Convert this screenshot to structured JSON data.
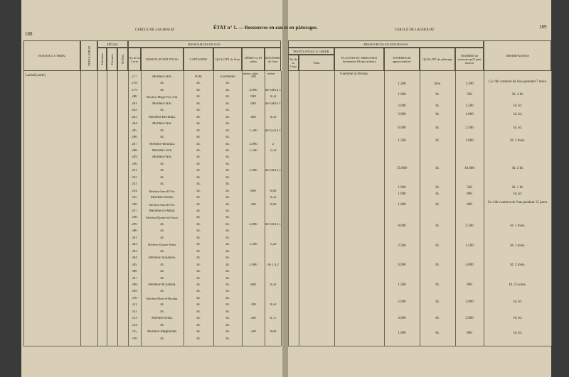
{
  "left_page": {
    "page_number": "188",
    "header": "CERCLE DE LAGHOUAT",
    "title": "ÉTAT n° 1. — Ressources en eau et en pâturages."
  },
  "right_page": {
    "header": "CERCLE DE LAGHOUAT",
    "page_number": "189"
  },
  "headers": [
    "NOM DE LA TRIBU",
    "POPULATION",
    "DÉTAIL",
    "Hommes",
    "Femmes",
    "TOTAL",
    "RESSOURCES EN EAU",
    "No de la Carte",
    "NOM DU POINT D'EAU",
    "CATÉGORIE",
    "QUALITÉ de l'eau",
    "DÉBIT en M cubes",
    "PROFONDEUR de l'eau",
    "RESSOURCES EN PATURAGES",
    "POINTS D'EAU À CRÉER",
    "No de la Carte",
    "Nom",
    "PLANTES ET ARBUSTES dominants (Noms arabes)",
    "SUPERFICIE approximative",
    "QUALITÉ du pâturage",
    "NOMBRE de moutons qu'il peut nourrir",
    "OBSERVATIONS"
  ],
  "units": {
    "debit": "mètres cubes",
    "depth": "mètres"
  },
  "tribe": "Larbaâ (suite)",
  "plants": "Guemme iz-Drouss.",
  "rows": [
    [
      "277",
      "Merdeur-Nili.",
      "R'dir",
      "Excellente",
      "700",
      null
    ],
    [
      "278",
      "Id.",
      "Id.",
      "Id.",
      null,
      null
    ],
    [
      "279",
      "Id.",
      "Id.",
      "Id.",
      "4.000",
      "de 0,80 à 1"
    ],
    [
      "280",
      "Merdeur-Mlaga-Fera-Nili.",
      "Id.",
      "Id.",
      "600",
      "0,50"
    ],
    [
      "281",
      "Merdeur-Nili.",
      "Id.",
      "Id.",
      "600",
      "de 0,80 à 1"
    ],
    [
      "282",
      "Id.",
      "Id.",
      "Id.",
      null,
      null
    ],
    [
      "283",
      "Merdeur-Bechraia.",
      "Id.",
      "Id.",
      "400",
      "0,50"
    ],
    [
      "284",
      "Merdeur-Nili.",
      "Id.",
      "Id.",
      null,
      null
    ],
    [
      "285",
      "Id.",
      "Id.",
      "Id.",
      "1.500",
      "de 0,50 à 1"
    ],
    [
      "286",
      "Id.",
      "Id.",
      "Id.",
      null,
      null
    ],
    [
      "287",
      "Merdeur-Boufaia.",
      "Id.",
      "Id.",
      "3.000",
      "2"
    ],
    [
      "288",
      "Merdeur-Trik.",
      "Id.",
      "Id.",
      "1.500",
      "1,50"
    ],
    [
      "289",
      "Merdeur-Nili.",
      "Id.",
      "Id.",
      null,
      null
    ],
    [
      "290",
      "Id.",
      "Id.",
      "Id.",
      null,
      null
    ],
    [
      "291",
      "Id.",
      "Id.",
      "Id.",
      "2.000",
      "de 0,80 à 1,20"
    ],
    [
      "292",
      "Id.",
      "Id.",
      "Id.",
      null,
      null
    ],
    [
      "293",
      "Id.",
      "Id.",
      "Id.",
      null,
      null
    ],
    [
      "294",
      "Merdeur-Saou-El-Ter.",
      "Id.",
      "Id.",
      "800",
      "0,80"
    ],
    [
      "295",
      "Merdeur-Nekra.",
      "Id.",
      "Id.",
      null,
      "0,50"
    ],
    [
      "296",
      "Merdeur-Saou-El-Ter.",
      "Id.",
      "Id.",
      "200",
      "0,60"
    ],
    [
      "297",
      "Merdeur-El-Mitat.",
      "Id.",
      "Id.",
      null,
      null
    ],
    [
      "298",
      "Merdeur-Djeam-bel-Aoud.",
      "Id.",
      "Id.",
      null,
      null
    ],
    [
      "299",
      "Id.",
      "Id.",
      "Id.",
      "2.000",
      "de 0,60 à 1,20"
    ],
    [
      "300",
      "Id.",
      "Id.",
      "Id.",
      null,
      null
    ],
    [
      "301",
      "Id.",
      "Id.",
      "Id.",
      null,
      null
    ],
    [
      "302",
      "Merdeur-Zaouiet-Sebar.",
      "Id.",
      "Id.",
      "1.300",
      "1,20"
    ],
    [
      "303",
      "Id.",
      "Id.",
      "Id.",
      null,
      null
    ],
    [
      "304",
      "Merdeur-Souabine.",
      "Id.",
      "Id.",
      null,
      null
    ],
    [
      "305",
      "Id.",
      "Id.",
      "Id.",
      "2.000",
      "de 1 à 2"
    ],
    [
      "306",
      "Id.",
      "Id.",
      "Id.",
      null,
      null
    ],
    [
      "307",
      "Id.",
      "Id.",
      "Id.",
      null,
      null
    ],
    [
      "308",
      "Merdeur-M'Zebara.",
      "Id.",
      "Id.",
      "800",
      "0,50"
    ],
    [
      "309",
      "Id.",
      "Id.",
      "Id.",
      null,
      null
    ],
    [
      "310",
      "Merdeur-Mouï-el-Hachim.",
      "Id.",
      "Id.",
      null,
      null
    ],
    [
      "311",
      "Id.",
      "Id.",
      "Id.",
      "700",
      "0,50"
    ],
    [
      "312",
      "Id.",
      "Id.",
      "Id.",
      null,
      null
    ],
    [
      "313",
      "Merdeur-Diba.",
      "Id.",
      "Id.",
      "500",
      "0,75"
    ],
    [
      "314",
      "Id.",
      "Id.",
      "Id.",
      null,
      null
    ],
    [
      "315",
      "Merdeur-Magrounat.",
      "Id.",
      "Id.",
      "500",
      "0,80"
    ],
    [
      "316",
      "Id.",
      "Id.",
      "Id.",
      null,
      null
    ]
  ],
  "pastures": [
    [
      "1.200",
      "Bon",
      "1.200",
      "Ce r'dir contient de l'eau pendant 7 mois."
    ],
    [
      "1.000",
      "Id.",
      "500",
      "Id. 4 Id."
    ],
    [
      "2.000",
      "Id.",
      "1.500",
      "Id. Id."
    ],
    [
      "2.000",
      "Id.",
      "1.000",
      "Id. Id."
    ],
    [
      "6.000",
      "Id.",
      "2.500",
      "Id. Id."
    ],
    [
      "1.500",
      "Id.",
      "1.000",
      "Id. 3 mois."
    ],
    [
      "25.000",
      "Id.",
      "10.000",
      "Id. 2 Id."
    ],
    [
      "1.000",
      "Id.",
      "500",
      "Id. 1 Id."
    ],
    [
      "1.000",
      "Id.",
      "800",
      "Id. Id."
    ],
    [
      "1.000",
      "Id.",
      "800",
      "Ce r'dir contient de l'eau pendant 15 jours."
    ],
    [
      "8.000",
      "Id.",
      "2.500",
      "Id. 1 mois."
    ],
    [
      "2.500",
      "Id.",
      "1.500",
      "Id. 1 mois."
    ],
    [
      "6.000",
      "Id.",
      "4.000",
      "Id. 2 mois."
    ],
    [
      "1.500",
      "Id.",
      "800",
      "Id. 15 jours."
    ],
    [
      "5.000",
      "Id.",
      "2.000",
      "Id. Id."
    ],
    [
      "4.000",
      "Id.",
      "2.000",
      "Id. Id."
    ],
    [
      "1.000",
      "Id.",
      "800",
      "Id. Id."
    ]
  ]
}
